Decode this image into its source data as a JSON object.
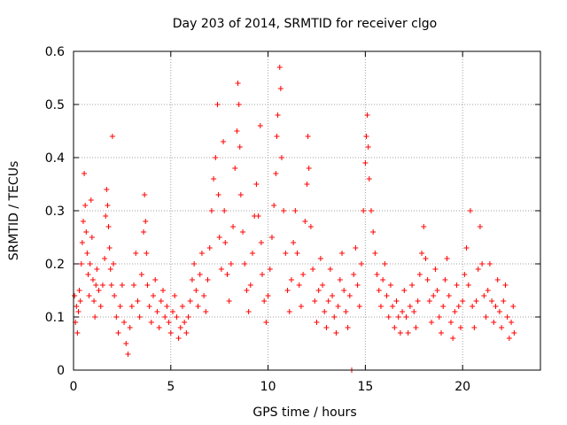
{
  "chart_data": {
    "type": "scatter",
    "title": "Day 203 of 2014, SRMTID for receiver clgo",
    "xlabel": "GPS time / hours",
    "ylabel": "SRMTID / TECUs",
    "xlim": [
      0,
      24
    ],
    "ylim": [
      0,
      0.6
    ],
    "xticks": [
      0,
      5,
      10,
      15,
      20
    ],
    "xtick_labels": [
      "0",
      "5",
      "10",
      "15",
      "20"
    ],
    "yticks": [
      0,
      0.1,
      0.2,
      0.3,
      0.4,
      0.5,
      0.6
    ],
    "ytick_labels": [
      "0",
      "0.1",
      "0.2",
      "0.3",
      "0.4",
      "0.5",
      "0.6"
    ],
    "grid": true,
    "marker": "+",
    "color": "#ff0000",
    "series": [
      {
        "name": "SRMTID",
        "points": [
          [
            0.05,
            0.14
          ],
          [
            0.1,
            0.09
          ],
          [
            0.15,
            0.12
          ],
          [
            0.2,
            0.07
          ],
          [
            0.25,
            0.11
          ],
          [
            0.3,
            0.15
          ],
          [
            0.35,
            0.13
          ],
          [
            0.4,
            0.2
          ],
          [
            0.45,
            0.24
          ],
          [
            0.5,
            0.28
          ],
          [
            0.55,
            0.37
          ],
          [
            0.6,
            0.31
          ],
          [
            0.65,
            0.26
          ],
          [
            0.7,
            0.22
          ],
          [
            0.75,
            0.18
          ],
          [
            0.8,
            0.14
          ],
          [
            0.85,
            0.2
          ],
          [
            0.9,
            0.32
          ],
          [
            0.95,
            0.25
          ],
          [
            1.0,
            0.17
          ],
          [
            1.05,
            0.13
          ],
          [
            1.1,
            0.1
          ],
          [
            1.15,
            0.16
          ],
          [
            1.2,
            0.19
          ],
          [
            1.3,
            0.15
          ],
          [
            1.4,
            0.12
          ],
          [
            1.5,
            0.16
          ],
          [
            1.6,
            0.21
          ],
          [
            1.65,
            0.29
          ],
          [
            1.7,
            0.34
          ],
          [
            1.75,
            0.31
          ],
          [
            1.8,
            0.27
          ],
          [
            1.85,
            0.23
          ],
          [
            1.9,
            0.19
          ],
          [
            1.95,
            0.16
          ],
          [
            2.0,
            0.44
          ],
          [
            2.05,
            0.2
          ],
          [
            2.1,
            0.14
          ],
          [
            2.2,
            0.1
          ],
          [
            2.3,
            0.07
          ],
          [
            2.4,
            0.12
          ],
          [
            2.5,
            0.16
          ],
          [
            2.6,
            0.09
          ],
          [
            2.7,
            0.05
          ],
          [
            2.8,
            0.03
          ],
          [
            2.9,
            0.08
          ],
          [
            3.0,
            0.12
          ],
          [
            3.1,
            0.16
          ],
          [
            3.2,
            0.22
          ],
          [
            3.3,
            0.13
          ],
          [
            3.4,
            0.1
          ],
          [
            3.5,
            0.18
          ],
          [
            3.6,
            0.26
          ],
          [
            3.65,
            0.33
          ],
          [
            3.7,
            0.28
          ],
          [
            3.75,
            0.22
          ],
          [
            3.8,
            0.16
          ],
          [
            3.9,
            0.12
          ],
          [
            4.0,
            0.09
          ],
          [
            4.1,
            0.14
          ],
          [
            4.2,
            0.17
          ],
          [
            4.3,
            0.11
          ],
          [
            4.4,
            0.08
          ],
          [
            4.5,
            0.13
          ],
          [
            4.6,
            0.15
          ],
          [
            4.7,
            0.1
          ],
          [
            4.8,
            0.12
          ],
          [
            4.9,
            0.09
          ],
          [
            5.0,
            0.07
          ],
          [
            5.1,
            0.11
          ],
          [
            5.2,
            0.14
          ],
          [
            5.3,
            0.1
          ],
          [
            5.4,
            0.06
          ],
          [
            5.5,
            0.08
          ],
          [
            5.6,
            0.12
          ],
          [
            5.7,
            0.09
          ],
          [
            5.8,
            0.07
          ],
          [
            5.9,
            0.1
          ],
          [
            6.0,
            0.13
          ],
          [
            6.1,
            0.17
          ],
          [
            6.2,
            0.2
          ],
          [
            6.3,
            0.15
          ],
          [
            6.4,
            0.12
          ],
          [
            6.5,
            0.18
          ],
          [
            6.6,
            0.22
          ],
          [
            6.7,
            0.14
          ],
          [
            6.8,
            0.11
          ],
          [
            6.9,
            0.17
          ],
          [
            7.0,
            0.23
          ],
          [
            7.1,
            0.3
          ],
          [
            7.2,
            0.36
          ],
          [
            7.3,
            0.4
          ],
          [
            7.4,
            0.5
          ],
          [
            7.45,
            0.33
          ],
          [
            7.5,
            0.25
          ],
          [
            7.6,
            0.19
          ],
          [
            7.7,
            0.43
          ],
          [
            7.75,
            0.3
          ],
          [
            7.8,
            0.24
          ],
          [
            7.9,
            0.18
          ],
          [
            8.0,
            0.13
          ],
          [
            8.1,
            0.2
          ],
          [
            8.2,
            0.27
          ],
          [
            8.3,
            0.38
          ],
          [
            8.4,
            0.45
          ],
          [
            8.45,
            0.54
          ],
          [
            8.5,
            0.5
          ],
          [
            8.55,
            0.42
          ],
          [
            8.6,
            0.33
          ],
          [
            8.7,
            0.26
          ],
          [
            8.8,
            0.2
          ],
          [
            8.9,
            0.15
          ],
          [
            9.0,
            0.11
          ],
          [
            9.1,
            0.16
          ],
          [
            9.2,
            0.22
          ],
          [
            9.3,
            0.29
          ],
          [
            9.4,
            0.35
          ],
          [
            9.5,
            0.29
          ],
          [
            9.6,
            0.46
          ],
          [
            9.65,
            0.24
          ],
          [
            9.7,
            0.18
          ],
          [
            9.8,
            0.13
          ],
          [
            9.9,
            0.09
          ],
          [
            10.0,
            0.14
          ],
          [
            10.1,
            0.19
          ],
          [
            10.2,
            0.25
          ],
          [
            10.3,
            0.31
          ],
          [
            10.4,
            0.37
          ],
          [
            10.45,
            0.44
          ],
          [
            10.5,
            0.48
          ],
          [
            10.6,
            0.57
          ],
          [
            10.65,
            0.53
          ],
          [
            10.7,
            0.4
          ],
          [
            10.8,
            0.3
          ],
          [
            10.9,
            0.22
          ],
          [
            11.0,
            0.15
          ],
          [
            11.1,
            0.11
          ],
          [
            11.2,
            0.17
          ],
          [
            11.3,
            0.24
          ],
          [
            11.4,
            0.3
          ],
          [
            11.5,
            0.22
          ],
          [
            11.6,
            0.16
          ],
          [
            11.7,
            0.12
          ],
          [
            11.8,
            0.18
          ],
          [
            11.9,
            0.28
          ],
          [
            12.0,
            0.35
          ],
          [
            12.05,
            0.44
          ],
          [
            12.1,
            0.38
          ],
          [
            12.2,
            0.27
          ],
          [
            12.3,
            0.19
          ],
          [
            12.4,
            0.13
          ],
          [
            12.5,
            0.09
          ],
          [
            12.6,
            0.15
          ],
          [
            12.7,
            0.21
          ],
          [
            12.8,
            0.16
          ],
          [
            12.9,
            0.11
          ],
          [
            13.0,
            0.08
          ],
          [
            13.1,
            0.13
          ],
          [
            13.2,
            0.19
          ],
          [
            13.3,
            0.14
          ],
          [
            13.4,
            0.1
          ],
          [
            13.5,
            0.07
          ],
          [
            13.6,
            0.12
          ],
          [
            13.7,
            0.17
          ],
          [
            13.8,
            0.22
          ],
          [
            13.9,
            0.15
          ],
          [
            14.0,
            0.11
          ],
          [
            14.1,
            0.08
          ],
          [
            14.2,
            0.14
          ],
          [
            14.3,
            0.0
          ],
          [
            14.4,
            0.18
          ],
          [
            14.5,
            0.23
          ],
          [
            14.6,
            0.16
          ],
          [
            14.7,
            0.12
          ],
          [
            14.8,
            0.2
          ],
          [
            14.9,
            0.3
          ],
          [
            15.0,
            0.39
          ],
          [
            15.05,
            0.44
          ],
          [
            15.1,
            0.48
          ],
          [
            15.15,
            0.42
          ],
          [
            15.2,
            0.36
          ],
          [
            15.3,
            0.3
          ],
          [
            15.4,
            0.26
          ],
          [
            15.5,
            0.22
          ],
          [
            15.6,
            0.18
          ],
          [
            15.7,
            0.15
          ],
          [
            15.8,
            0.12
          ],
          [
            15.9,
            0.17
          ],
          [
            16.0,
            0.2
          ],
          [
            16.1,
            0.14
          ],
          [
            16.2,
            0.1
          ],
          [
            16.3,
            0.16
          ],
          [
            16.4,
            0.12
          ],
          [
            16.5,
            0.08
          ],
          [
            16.6,
            0.13
          ],
          [
            16.7,
            0.1
          ],
          [
            16.8,
            0.07
          ],
          [
            16.9,
            0.11
          ],
          [
            17.0,
            0.15
          ],
          [
            17.1,
            0.1
          ],
          [
            17.2,
            0.07
          ],
          [
            17.3,
            0.12
          ],
          [
            17.4,
            0.16
          ],
          [
            17.5,
            0.11
          ],
          [
            17.6,
            0.08
          ],
          [
            17.7,
            0.13
          ],
          [
            17.8,
            0.18
          ],
          [
            17.9,
            0.22
          ],
          [
            18.0,
            0.27
          ],
          [
            18.1,
            0.21
          ],
          [
            18.2,
            0.17
          ],
          [
            18.3,
            0.13
          ],
          [
            18.4,
            0.09
          ],
          [
            18.5,
            0.14
          ],
          [
            18.6,
            0.19
          ],
          [
            18.7,
            0.15
          ],
          [
            18.8,
            0.1
          ],
          [
            18.9,
            0.07
          ],
          [
            19.0,
            0.12
          ],
          [
            19.1,
            0.17
          ],
          [
            19.2,
            0.21
          ],
          [
            19.3,
            0.14
          ],
          [
            19.4,
            0.09
          ],
          [
            19.5,
            0.06
          ],
          [
            19.6,
            0.11
          ],
          [
            19.7,
            0.16
          ],
          [
            19.8,
            0.12
          ],
          [
            19.9,
            0.08
          ],
          [
            20.0,
            0.13
          ],
          [
            20.1,
            0.18
          ],
          [
            20.2,
            0.23
          ],
          [
            20.3,
            0.16
          ],
          [
            20.4,
            0.3
          ],
          [
            20.5,
            0.12
          ],
          [
            20.6,
            0.08
          ],
          [
            20.7,
            0.13
          ],
          [
            20.8,
            0.19
          ],
          [
            20.9,
            0.27
          ],
          [
            21.0,
            0.2
          ],
          [
            21.1,
            0.14
          ],
          [
            21.2,
            0.1
          ],
          [
            21.3,
            0.15
          ],
          [
            21.4,
            0.2
          ],
          [
            21.5,
            0.13
          ],
          [
            21.6,
            0.09
          ],
          [
            21.7,
            0.12
          ],
          [
            21.8,
            0.17
          ],
          [
            21.9,
            0.11
          ],
          [
            22.0,
            0.08
          ],
          [
            22.1,
            0.13
          ],
          [
            22.2,
            0.16
          ],
          [
            22.3,
            0.1
          ],
          [
            22.4,
            0.06
          ],
          [
            22.5,
            0.09
          ],
          [
            22.6,
            0.12
          ],
          [
            22.65,
            0.07
          ]
        ]
      }
    ]
  }
}
